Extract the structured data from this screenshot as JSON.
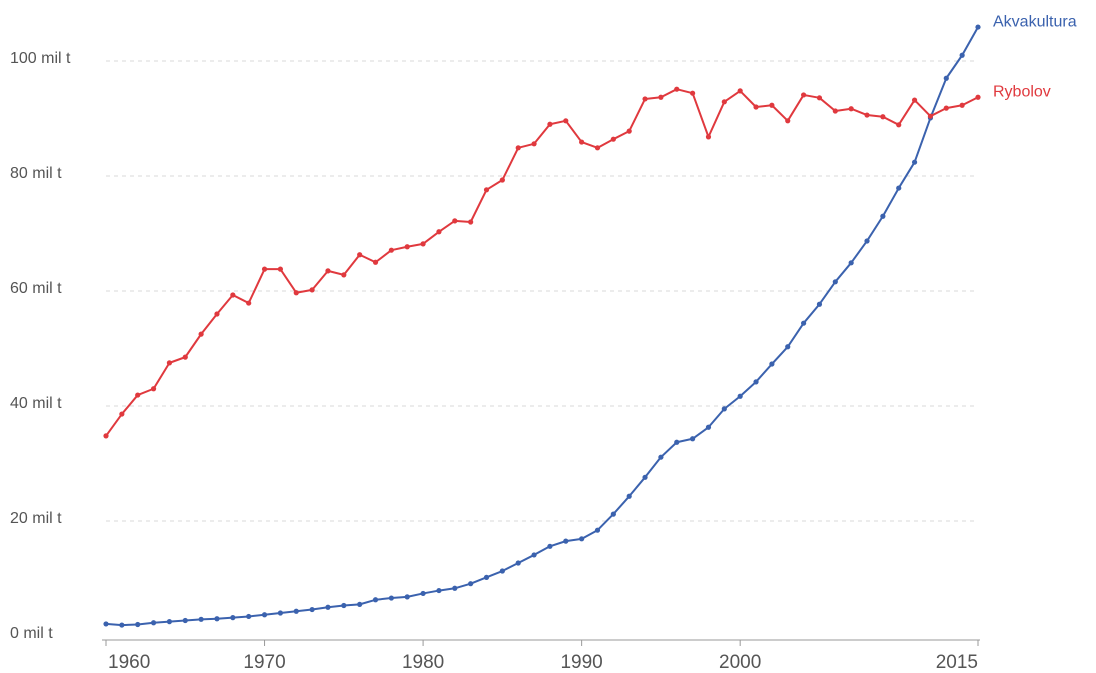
{
  "chart_data": {
    "type": "line",
    "x": [
      1960,
      1961,
      1962,
      1963,
      1964,
      1965,
      1966,
      1967,
      1968,
      1969,
      1970,
      1971,
      1972,
      1973,
      1974,
      1975,
      1976,
      1977,
      1978,
      1979,
      1980,
      1981,
      1982,
      1983,
      1984,
      1985,
      1986,
      1987,
      1988,
      1989,
      1990,
      1991,
      1992,
      1993,
      1994,
      1995,
      1996,
      1997,
      1998,
      1999,
      2000,
      2001,
      2002,
      2003,
      2004,
      2005,
      2006,
      2007,
      2008,
      2009,
      2010,
      2011,
      2012,
      2013,
      2014,
      2015
    ],
    "series": [
      {
        "name": "Akvakultura",
        "color": "#3b62ae",
        "values": [
          2.1,
          1.9,
          2.0,
          2.3,
          2.5,
          2.7,
          2.9,
          3.0,
          3.2,
          3.4,
          3.7,
          4.0,
          4.3,
          4.6,
          5.0,
          5.3,
          5.5,
          6.3,
          6.6,
          6.8,
          7.4,
          7.9,
          8.3,
          9.1,
          10.2,
          11.3,
          12.7,
          14.1,
          15.6,
          16.5,
          16.9,
          18.4,
          21.2,
          24.3,
          27.6,
          31.1,
          33.7,
          34.3,
          36.3,
          39.5,
          41.7,
          44.2,
          47.3,
          50.3,
          54.4,
          57.7,
          61.6,
          64.9,
          68.7,
          73.0,
          77.9,
          82.4,
          90.1,
          97.0,
          101.0,
          105.9
        ]
      },
      {
        "name": "Rybolov",
        "color": "#e0393e",
        "values": [
          34.8,
          38.6,
          41.9,
          43.0,
          47.5,
          48.5,
          52.5,
          56.0,
          59.3,
          57.9,
          63.8,
          63.8,
          59.7,
          60.2,
          63.5,
          62.8,
          66.3,
          65.0,
          67.1,
          67.7,
          68.2,
          70.3,
          72.2,
          72.0,
          77.6,
          79.3,
          84.9,
          85.6,
          89.0,
          89.6,
          85.9,
          84.9,
          86.4,
          87.8,
          93.4,
          93.7,
          95.1,
          94.4,
          86.8,
          92.9,
          94.8,
          92.0,
          92.3,
          89.6,
          94.1,
          93.6,
          91.3,
          91.7,
          90.6,
          90.3,
          88.9,
          93.2,
          90.4,
          91.8,
          92.3,
          93.7
        ]
      }
    ],
    "xlim": [
      1960,
      2015
    ],
    "xticks": [
      1960,
      1970,
      1980,
      1990,
      2000,
      2015
    ],
    "ylim": [
      0,
      110
    ],
    "yticks": [
      {
        "value": 0,
        "label": "0 mil t"
      },
      {
        "value": 20,
        "label": "20 mil t"
      },
      {
        "value": 40,
        "label": "40 mil t"
      },
      {
        "value": 60,
        "label": "60 mil t"
      },
      {
        "value": 80,
        "label": "80 mil t"
      },
      {
        "value": 100,
        "label": "100 mil t"
      }
    ],
    "grid": true
  }
}
